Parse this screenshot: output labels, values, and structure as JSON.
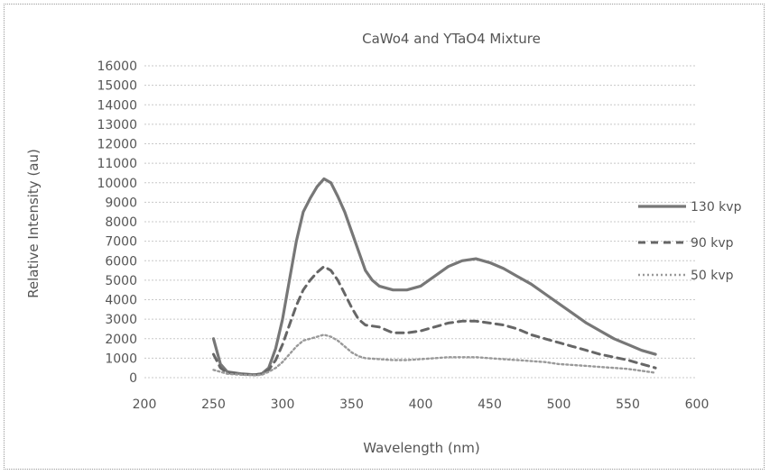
{
  "chart_data": {
    "type": "line",
    "title": "CaWo4 and YTaO4 Mixture",
    "xlabel": "Wavelength (nm)",
    "ylabel": "Relative Intensity (au)",
    "xlim": [
      200,
      600
    ],
    "ylim": [
      0,
      16000
    ],
    "x_ticks": [
      "200",
      "250",
      "300",
      "350",
      "400",
      "450",
      "500",
      "550",
      "600"
    ],
    "y_ticks": [
      "0",
      "1000",
      "2000",
      "3000",
      "4000",
      "5000",
      "6000",
      "7000",
      "8000",
      "9000",
      "10000",
      "11000",
      "12000",
      "13000",
      "14000",
      "15000",
      "16000"
    ],
    "grid": true,
    "legend_position": "right",
    "series": [
      {
        "name": "130 kvp",
        "style": "solid",
        "points": [
          [
            250,
            2000
          ],
          [
            255,
            700
          ],
          [
            260,
            300
          ],
          [
            270,
            200
          ],
          [
            280,
            150
          ],
          [
            285,
            200
          ],
          [
            290,
            500
          ],
          [
            295,
            1500
          ],
          [
            300,
            3000
          ],
          [
            305,
            5000
          ],
          [
            310,
            7000
          ],
          [
            315,
            8500
          ],
          [
            320,
            9200
          ],
          [
            325,
            9800
          ],
          [
            330,
            10200
          ],
          [
            335,
            10000
          ],
          [
            340,
            9300
          ],
          [
            345,
            8500
          ],
          [
            350,
            7500
          ],
          [
            355,
            6500
          ],
          [
            360,
            5500
          ],
          [
            365,
            5000
          ],
          [
            370,
            4700
          ],
          [
            380,
            4500
          ],
          [
            390,
            4500
          ],
          [
            400,
            4700
          ],
          [
            410,
            5200
          ],
          [
            420,
            5700
          ],
          [
            430,
            6000
          ],
          [
            440,
            6100
          ],
          [
            450,
            5900
          ],
          [
            460,
            5600
          ],
          [
            470,
            5200
          ],
          [
            480,
            4800
          ],
          [
            490,
            4300
          ],
          [
            500,
            3800
          ],
          [
            510,
            3300
          ],
          [
            520,
            2800
          ],
          [
            530,
            2400
          ],
          [
            540,
            2000
          ],
          [
            550,
            1700
          ],
          [
            560,
            1400
          ],
          [
            570,
            1200
          ]
        ]
      },
      {
        "name": "90 kvp",
        "style": "dashed",
        "points": [
          [
            250,
            1200
          ],
          [
            255,
            500
          ],
          [
            260,
            250
          ],
          [
            270,
            180
          ],
          [
            280,
            150
          ],
          [
            285,
            200
          ],
          [
            290,
            400
          ],
          [
            295,
            900
          ],
          [
            300,
            1700
          ],
          [
            305,
            2700
          ],
          [
            310,
            3700
          ],
          [
            315,
            4500
          ],
          [
            320,
            5000
          ],
          [
            325,
            5400
          ],
          [
            330,
            5700
          ],
          [
            335,
            5500
          ],
          [
            340,
            5000
          ],
          [
            345,
            4300
          ],
          [
            350,
            3600
          ],
          [
            355,
            3000
          ],
          [
            360,
            2700
          ],
          [
            370,
            2600
          ],
          [
            380,
            2300
          ],
          [
            390,
            2300
          ],
          [
            400,
            2400
          ],
          [
            410,
            2600
          ],
          [
            420,
            2800
          ],
          [
            430,
            2900
          ],
          [
            440,
            2900
          ],
          [
            450,
            2800
          ],
          [
            460,
            2700
          ],
          [
            470,
            2500
          ],
          [
            480,
            2200
          ],
          [
            490,
            2000
          ],
          [
            500,
            1800
          ],
          [
            510,
            1600
          ],
          [
            520,
            1400
          ],
          [
            530,
            1200
          ],
          [
            540,
            1050
          ],
          [
            550,
            900
          ],
          [
            560,
            700
          ],
          [
            570,
            500
          ]
        ]
      },
      {
        "name": "50 kvp",
        "style": "dotted",
        "points": [
          [
            250,
            400
          ],
          [
            255,
            300
          ],
          [
            260,
            200
          ],
          [
            270,
            150
          ],
          [
            280,
            120
          ],
          [
            285,
            150
          ],
          [
            290,
            300
          ],
          [
            295,
            500
          ],
          [
            300,
            800
          ],
          [
            305,
            1200
          ],
          [
            310,
            1600
          ],
          [
            315,
            1900
          ],
          [
            320,
            2000
          ],
          [
            325,
            2100
          ],
          [
            330,
            2200
          ],
          [
            335,
            2100
          ],
          [
            340,
            1900
          ],
          [
            345,
            1600
          ],
          [
            350,
            1300
          ],
          [
            355,
            1100
          ],
          [
            360,
            1000
          ],
          [
            370,
            950
          ],
          [
            380,
            900
          ],
          [
            390,
            900
          ],
          [
            400,
            950
          ],
          [
            410,
            1000
          ],
          [
            420,
            1050
          ],
          [
            430,
            1050
          ],
          [
            440,
            1050
          ],
          [
            450,
            1000
          ],
          [
            460,
            950
          ],
          [
            470,
            900
          ],
          [
            480,
            850
          ],
          [
            490,
            800
          ],
          [
            500,
            700
          ],
          [
            510,
            650
          ],
          [
            520,
            600
          ],
          [
            530,
            550
          ],
          [
            540,
            500
          ],
          [
            550,
            450
          ],
          [
            560,
            350
          ],
          [
            570,
            250
          ]
        ]
      }
    ]
  }
}
